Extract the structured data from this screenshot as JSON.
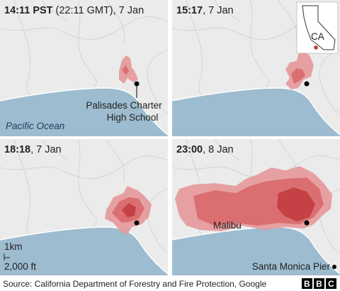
{
  "panels": [
    {
      "time": "14:11 PST",
      "date": "(22:11 GMT), 7 Jan",
      "labels": [
        "Palisades Charter",
        "High School",
        "Pacific Ocean"
      ]
    },
    {
      "time": "15:17",
      "date": ", 7 Jan",
      "labels": [
        "CA"
      ]
    },
    {
      "time": "18:18",
      "date": ", 7 Jan",
      "labels": [
        "1km",
        "2,000 ft"
      ]
    },
    {
      "time": "23:00",
      "date": ", 8 Jan",
      "labels": [
        "Malibu",
        "Santa Monica Pier"
      ]
    }
  ],
  "source": "Source: California Department of Forestry and Fire Protection, Google",
  "logo": "BBC"
}
